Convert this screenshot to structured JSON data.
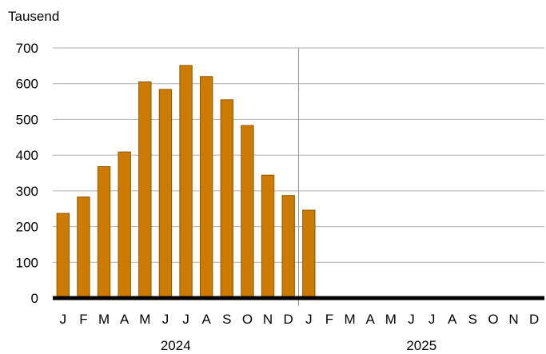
{
  "chart_data": {
    "type": "bar",
    "unit_label": "Tausend",
    "ylim": [
      0,
      700
    ],
    "y_ticks": [
      0,
      100,
      200,
      300,
      400,
      500,
      600,
      700
    ],
    "grid": true,
    "categories": [
      "J",
      "F",
      "M",
      "A",
      "M",
      "J",
      "J",
      "A",
      "S",
      "O",
      "N",
      "D",
      "J",
      "F",
      "M",
      "A",
      "M",
      "J",
      "J",
      "A",
      "S",
      "O",
      "N",
      "D"
    ],
    "year_labels": [
      "2024",
      "2025"
    ],
    "series": [
      {
        "values": [
          237,
          283,
          368,
          409,
          605,
          584,
          651,
          620,
          555,
          483,
          344,
          287,
          246,
          null,
          null,
          null,
          null,
          null,
          null,
          null,
          null,
          null,
          null,
          null
        ]
      }
    ],
    "colors": {
      "bar": "#CC7A00",
      "bar_border": "#8A5A00",
      "grid": "#b0b0b0",
      "axis": "#000000"
    }
  }
}
